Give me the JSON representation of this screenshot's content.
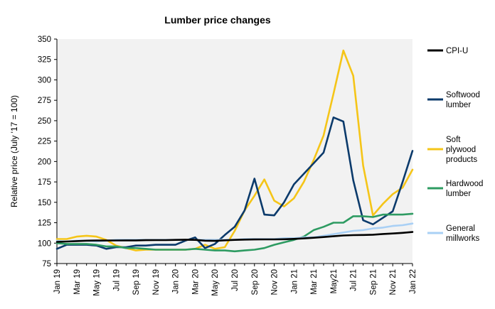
{
  "chart_data": {
    "type": "line",
    "title": "Lumber price changes",
    "ylabel": "Relative price (July '17 = 100)",
    "xlabel": "",
    "ylim": [
      75,
      350
    ],
    "yticks": [
      75,
      100,
      125,
      150,
      175,
      200,
      225,
      250,
      275,
      300,
      325,
      350
    ],
    "x_tick_labels": [
      "Jan 19",
      "Mar 19",
      "May 19",
      "Jul 19",
      "Sep 19",
      "Nov 19",
      "Jan 20",
      "Mar 20",
      "May 20",
      "Jul 20",
      "Sep 20",
      "Nov 20",
      "Jan 21",
      "Mar 21",
      "May21",
      "Jul 21",
      "Sep 21",
      "Nov 21",
      "Jan 22"
    ],
    "x": [
      "Jan 19",
      "Feb 19",
      "Mar 19",
      "Apr 19",
      "May 19",
      "Jun 19",
      "Jul 19",
      "Aug 19",
      "Sep 19",
      "Oct 19",
      "Nov 19",
      "Dec 19",
      "Jan 20",
      "Feb 20",
      "Mar 20",
      "Apr 20",
      "May 20",
      "Jun 20",
      "Jul 20",
      "Aug 20",
      "Sep 20",
      "Oct 20",
      "Nov 20",
      "Dec 20",
      "Jan 21",
      "Feb 21",
      "Mar 21",
      "Apr 21",
      "May21",
      "Jun 21",
      "Jul 21",
      "Aug 21",
      "Sep 21",
      "Oct 21",
      "Nov 21",
      "Dec 21",
      "Jan 22"
    ],
    "grid": false,
    "legend_position": "right",
    "series": [
      {
        "name": "CPI-U",
        "color": "#000000",
        "values": [
          101.5,
          102.0,
          102.5,
          103.0,
          103.2,
          103.2,
          103.3,
          103.4,
          103.4,
          103.6,
          103.7,
          103.7,
          104.0,
          104.2,
          104.0,
          103.0,
          102.8,
          103.5,
          104.0,
          104.3,
          104.5,
          104.6,
          104.6,
          104.8,
          105.2,
          105.8,
          106.6,
          107.5,
          108.4,
          109.4,
          109.8,
          110.0,
          110.3,
          111.2,
          111.8,
          112.6,
          113.6
        ]
      },
      {
        "name": "Softwood lumber",
        "color": "#0b3a6b",
        "values": [
          93,
          98,
          98,
          98,
          97,
          93,
          95,
          95,
          97,
          97,
          98,
          98,
          98,
          103,
          107,
          94,
          99,
          110,
          120,
          140,
          179,
          135,
          134,
          150,
          172,
          185,
          198,
          211,
          254,
          249,
          177,
          128,
          123,
          131,
          139,
          175,
          213
        ]
      },
      {
        "name": "Soft plywood products",
        "color": "#f5c518",
        "values": [
          105,
          105,
          108,
          109,
          108,
          104,
          97,
          94,
          91,
          92,
          92,
          92,
          92,
          92,
          93,
          98,
          93,
          95,
          115,
          140,
          158,
          178,
          152,
          145,
          155,
          175,
          202,
          232,
          283,
          336,
          305,
          195,
          134,
          148,
          160,
          168,
          190
        ]
      },
      {
        "name": "Hardwood lumber",
        "color": "#2e9b62",
        "values": [
          100,
          99,
          99,
          99,
          98,
          96,
          96,
          94,
          94,
          93,
          92,
          92,
          92,
          92,
          93,
          92,
          91,
          91,
          90,
          91,
          92,
          94,
          98,
          101,
          104,
          108,
          116,
          120,
          125,
          125,
          133,
          133,
          132,
          135,
          135,
          135,
          136
        ]
      },
      {
        "name": "General millworks",
        "color": "#a9d0f5",
        "values": [
          103,
          102,
          103,
          103,
          102,
          103,
          104,
          104,
          104,
          104,
          104,
          104,
          104,
          104,
          104,
          104,
          104,
          104,
          104,
          105,
          105,
          105,
          105,
          106,
          106,
          107,
          107,
          109,
          111,
          113,
          115,
          116,
          118,
          119,
          121,
          122,
          124
        ]
      }
    ],
    "legend": [
      {
        "lines": [
          "CPI-U"
        ],
        "color": "#000000"
      },
      {
        "lines": [
          "Softwood",
          "lumber"
        ],
        "color": "#0b3a6b"
      },
      {
        "lines": [
          "Soft",
          "plywood",
          "products"
        ],
        "color": "#f5c518"
      },
      {
        "lines": [
          "Hardwood",
          "lumber"
        ],
        "color": "#2e9b62"
      },
      {
        "lines": [
          "General",
          "millworks"
        ],
        "color": "#a9d0f5"
      }
    ],
    "plot_background": "#f2f2f2"
  }
}
